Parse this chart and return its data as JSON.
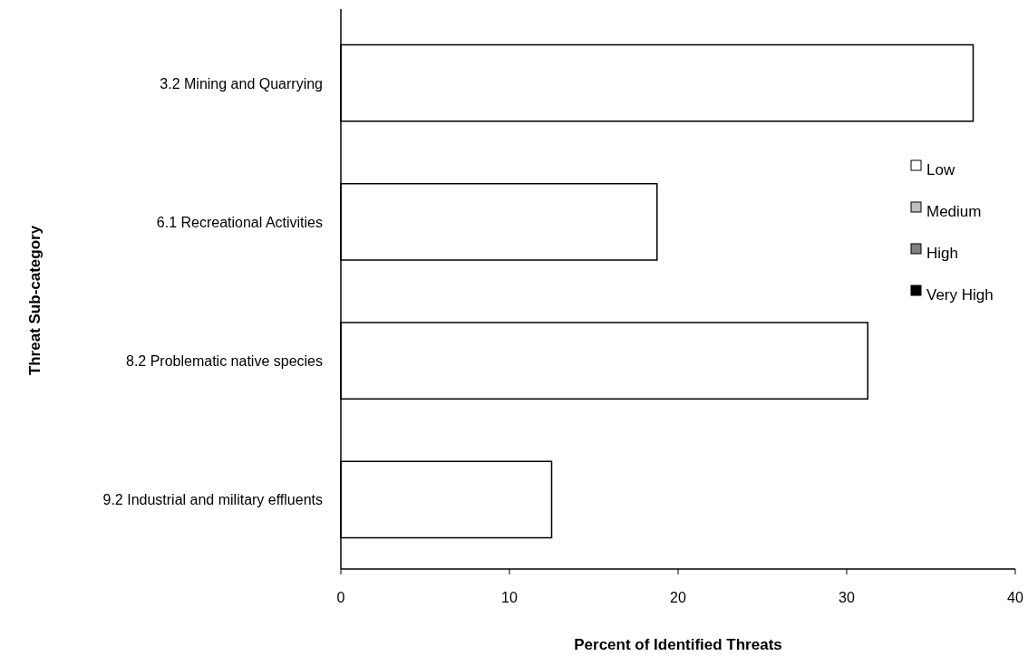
{
  "chart_data": {
    "type": "bar",
    "orientation": "horizontal",
    "stacked": true,
    "xlabel": "Percent of Identified Threats",
    "ylabel": "Threat Sub-category",
    "categories": [
      "3.2 Mining and Quarrying",
      "6.1 Recreational  Activities",
      "8.2 Problematic native species",
      "9.2 Industrial and military effluents"
    ],
    "series": [
      {
        "name": "Low",
        "color": "#ffffff",
        "values": [
          37.5,
          18.75,
          31.25,
          12.5
        ]
      },
      {
        "name": "Medium",
        "color": "#c0c0c0",
        "values": [
          0,
          0,
          0,
          0
        ]
      },
      {
        "name": "High",
        "color": "#808080",
        "values": [
          0,
          0,
          0,
          0
        ]
      },
      {
        "name": "Very High",
        "color": "#000000",
        "values": [
          0,
          0,
          0,
          0
        ]
      }
    ],
    "xlim": [
      0,
      40
    ],
    "xticks": [
      0,
      10,
      20,
      30,
      40
    ],
    "grid": false,
    "legend": "right"
  }
}
